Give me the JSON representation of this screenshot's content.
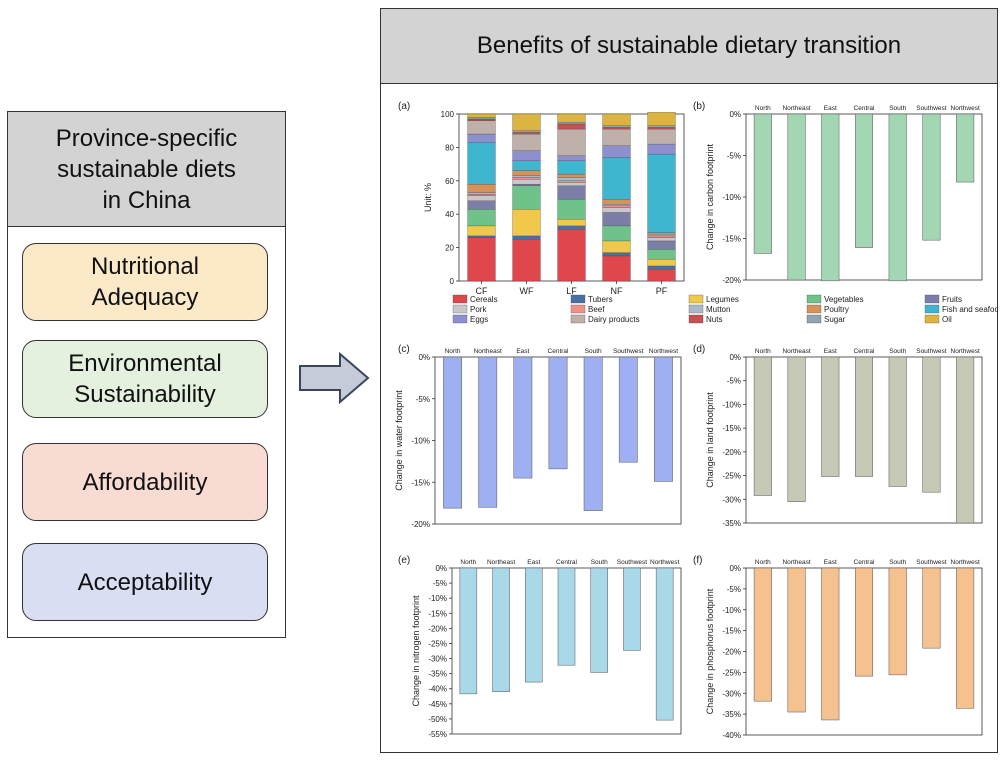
{
  "left_panel": {
    "title": "Province-specific\nsustainable diets\nin China",
    "criteria": [
      {
        "label": "Nutritional\nAdequacy",
        "color": "#fbe9c8"
      },
      {
        "label": "Environmental\nSustainability",
        "color": "#e4f1de"
      },
      {
        "label": "Affordability",
        "color": "#f8dcd3"
      },
      {
        "label": "Acceptability",
        "color": "#d9def2"
      }
    ]
  },
  "right_panel": {
    "title": "Benefits of sustainable dietary transition"
  },
  "chart_data": [
    {
      "panel": "(a)",
      "type": "bar",
      "stacked": true,
      "categories": [
        "CF",
        "WF",
        "LF",
        "NF",
        "PF"
      ],
      "ylabel": "Unit: %",
      "ylim": [
        0,
        100
      ],
      "yticks": [
        0,
        20,
        40,
        60,
        80,
        100
      ],
      "series": [
        {
          "name": "Cereals",
          "color": "#e0474c",
          "values": [
            26,
            25,
            31,
            15,
            7
          ]
        },
        {
          "name": "Tubers",
          "color": "#4a6fa5",
          "values": [
            1,
            2,
            2,
            2,
            2
          ]
        },
        {
          "name": "Legumes",
          "color": "#f0c94a",
          "values": [
            6,
            16,
            4,
            7,
            4
          ]
        },
        {
          "name": "Vegetables",
          "color": "#6fc28a",
          "values": [
            10,
            14,
            12,
            9,
            6
          ]
        },
        {
          "name": "Fruits",
          "color": "#7b7fa8",
          "values": [
            5,
            1,
            8,
            8,
            5
          ]
        },
        {
          "name": "Pork",
          "color": "#c9c6cc",
          "values": [
            3,
            3,
            2,
            3,
            2
          ]
        },
        {
          "name": "Beef",
          "color": "#f08f86",
          "values": [
            1,
            1,
            1,
            1,
            1
          ]
        },
        {
          "name": "Mutton",
          "color": "#a9b9c7",
          "values": [
            1,
            1,
            2,
            1,
            1
          ]
        },
        {
          "name": "Poultry",
          "color": "#d7925a",
          "values": [
            5,
            3,
            2,
            3,
            1
          ]
        },
        {
          "name": "Fish and seafood",
          "color": "#3fb6cf",
          "values": [
            25,
            6,
            8,
            25,
            47
          ]
        },
        {
          "name": "Eggs",
          "color": "#8e8fcf",
          "values": [
            5,
            6,
            3,
            7,
            6
          ]
        },
        {
          "name": "Dairy products",
          "color": "#bfb0aa",
          "values": [
            8,
            10,
            16,
            10,
            9
          ]
        },
        {
          "name": "Nuts",
          "color": "#c94f52",
          "values": [
            1,
            1,
            3,
            1,
            1
          ]
        },
        {
          "name": "Sugar",
          "color": "#8fa5b1",
          "values": [
            1,
            1,
            1,
            1,
            1
          ]
        },
        {
          "name": "Oil",
          "color": "#dcb540",
          "values": [
            2,
            10,
            5,
            7,
            8
          ]
        }
      ]
    },
    {
      "panel": "(b)",
      "type": "bar",
      "color": "#a3d6b3",
      "categories": [
        "North",
        "Northeast",
        "East",
        "Central",
        "South",
        "Southwest",
        "Northwest"
      ],
      "values": [
        -16.8,
        -20,
        -20.1,
        -16.1,
        -20.1,
        -15.2,
        -8.2
      ],
      "ylabel": "Change in carbon footprint",
      "ylim": [
        -20,
        0
      ],
      "yticks": [
        0,
        -5,
        -10,
        -15,
        -20
      ]
    },
    {
      "panel": "(c)",
      "type": "bar",
      "color": "#9eaff2",
      "categories": [
        "North",
        "Northeast",
        "East",
        "Central",
        "South",
        "Southwest",
        "Northwest"
      ],
      "values": [
        -18.1,
        -18,
        -14.5,
        -13.4,
        -18.4,
        -12.6,
        -14.9
      ],
      "ylabel": "Change in water footprint",
      "ylim": [
        -20,
        0
      ],
      "yticks": [
        0,
        -5,
        -10,
        -15,
        -20
      ]
    },
    {
      "panel": "(d)",
      "type": "bar",
      "color": "#c6c9b5",
      "categories": [
        "North",
        "Northeast",
        "East",
        "Central",
        "South",
        "Southwest",
        "Northwest"
      ],
      "values": [
        -29.2,
        -30.5,
        -25.2,
        -25.2,
        -27.3,
        -28.5,
        -35
      ],
      "ylabel": "Change in land footprint",
      "ylim": [
        -35,
        0
      ],
      "yticks": [
        0,
        -5,
        -10,
        -15,
        -20,
        -25,
        -30,
        -35
      ]
    },
    {
      "panel": "(e)",
      "type": "bar",
      "color": "#a9d8e9",
      "categories": [
        "North",
        "Northeast",
        "East",
        "Central",
        "South",
        "Southwest",
        "Northwest"
      ],
      "values": [
        -41.7,
        -41,
        -37.8,
        -32.2,
        -34.6,
        -27.3,
        -50.4
      ],
      "ylabel": "Change in nitrogen footprint",
      "ylim": [
        -55,
        0
      ],
      "yticks": [
        0,
        -5,
        -10,
        -15,
        -20,
        -25,
        -30,
        -35,
        -40,
        -45,
        -50,
        -55
      ]
    },
    {
      "panel": "(f)",
      "type": "bar",
      "color": "#f4c18f",
      "categories": [
        "North",
        "Northeast",
        "East",
        "Central",
        "South",
        "Southwest",
        "Northwest"
      ],
      "values": [
        -31.9,
        -34.5,
        -36.4,
        -25.9,
        -25.6,
        -19.2,
        -33.6
      ],
      "ylabel": "Change in phosphorus footprint",
      "ylim": [
        -40,
        0
      ],
      "yticks": [
        0,
        -5,
        -10,
        -15,
        -20,
        -25,
        -30,
        -35,
        -40
      ]
    }
  ]
}
